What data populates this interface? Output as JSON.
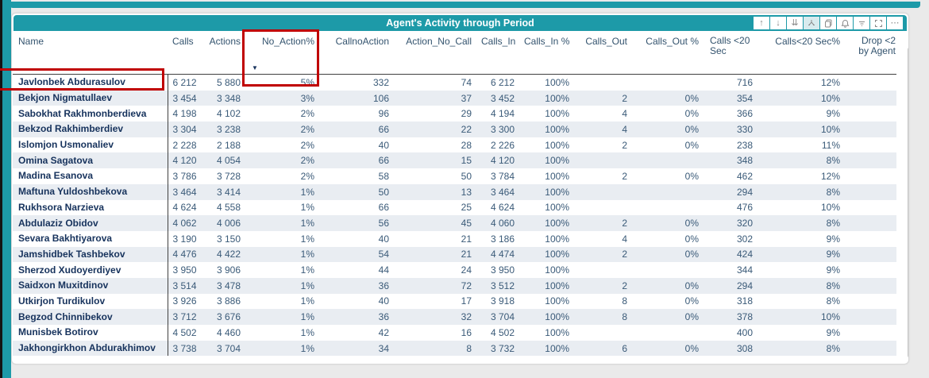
{
  "colors": {
    "accent_teal": "#1d9aa8",
    "annotation_red": "#c00000",
    "row_stripe": "#e9edf2",
    "name_text": "#16325c",
    "value_text": "#3a5a78"
  },
  "title_bar": {
    "title": "Agent's Activity through Period",
    "icons": [
      {
        "name": "drill-up-icon",
        "glyph": "↑"
      },
      {
        "name": "drill-down-icon",
        "glyph": "↓"
      },
      {
        "name": "drill-next-level-icon",
        "glyph": "⇊"
      },
      {
        "name": "expand-all-icon",
        "glyph": ""
      },
      {
        "name": "copy-icon",
        "glyph": ""
      },
      {
        "name": "alert-icon",
        "glyph": ""
      },
      {
        "name": "filter-icon",
        "glyph": ""
      },
      {
        "name": "focus-mode-icon",
        "glyph": ""
      },
      {
        "name": "more-options-icon",
        "glyph": "⋯"
      }
    ]
  },
  "table": {
    "columns": [
      {
        "id": "name",
        "label": "Name",
        "align": "left"
      },
      {
        "id": "calls",
        "label": "Calls",
        "align": "right"
      },
      {
        "id": "actions",
        "label": "Actions",
        "align": "right"
      },
      {
        "id": "no_action_pct",
        "label": "No_Action%",
        "align": "right",
        "sorted": "desc",
        "highlighted": true
      },
      {
        "id": "callnoaction",
        "label": "CallnoAction",
        "align": "right"
      },
      {
        "id": "action_no_call",
        "label": "Action_No_Call",
        "align": "right"
      },
      {
        "id": "calls_in",
        "label": "Calls_In",
        "align": "right"
      },
      {
        "id": "calls_in_pct",
        "label": "Calls_In %",
        "align": "right"
      },
      {
        "id": "calls_out",
        "label": "Calls_Out",
        "align": "right"
      },
      {
        "id": "calls_out_pct",
        "label": "Calls_Out %",
        "align": "right"
      },
      {
        "id": "calls_lt20_sec",
        "label": "Calls <20 Sec",
        "align": "right",
        "wrap": true
      },
      {
        "id": "calls_lt20_sec_pct",
        "label": "Calls<20 Sec%",
        "align": "right"
      },
      {
        "id": "drop_lt2_by_agent",
        "label": "Drop <2 by Agent",
        "align": "right",
        "wrap": true,
        "truncated": true
      }
    ],
    "rows": [
      [
        "Javlonbek Abdurasulov",
        "6 212",
        "5 880",
        "5%",
        "332",
        "74",
        "6 212",
        "100%",
        "",
        "",
        "716",
        "12%",
        ""
      ],
      [
        "Bekjon Nigmatullaev",
        "3 454",
        "3 348",
        "3%",
        "106",
        "37",
        "3 452",
        "100%",
        "2",
        "0%",
        "354",
        "10%",
        ""
      ],
      [
        "Sabokhat Rakhmonberdieva",
        "4 198",
        "4 102",
        "2%",
        "96",
        "29",
        "4 194",
        "100%",
        "4",
        "0%",
        "366",
        "9%",
        ""
      ],
      [
        "Bekzod Rakhimberdiev",
        "3 304",
        "3 238",
        "2%",
        "66",
        "22",
        "3 300",
        "100%",
        "4",
        "0%",
        "330",
        "10%",
        ""
      ],
      [
        "Islomjon Usmonaliev",
        "2 228",
        "2 188",
        "2%",
        "40",
        "28",
        "2 226",
        "100%",
        "2",
        "0%",
        "238",
        "11%",
        ""
      ],
      [
        "Omina Sagatova",
        "4 120",
        "4 054",
        "2%",
        "66",
        "15",
        "4 120",
        "100%",
        "",
        "",
        "348",
        "8%",
        ""
      ],
      [
        "Madina Esanova",
        "3 786",
        "3 728",
        "2%",
        "58",
        "50",
        "3 784",
        "100%",
        "2",
        "0%",
        "462",
        "12%",
        ""
      ],
      [
        "Maftuna Yuldoshbekova",
        "3 464",
        "3 414",
        "1%",
        "50",
        "13",
        "3 464",
        "100%",
        "",
        "",
        "294",
        "8%",
        ""
      ],
      [
        "Rukhsora Narzieva",
        "4 624",
        "4 558",
        "1%",
        "66",
        "25",
        "4 624",
        "100%",
        "",
        "",
        "476",
        "10%",
        ""
      ],
      [
        "Abdulaziz Obidov",
        "4 062",
        "4 006",
        "1%",
        "56",
        "45",
        "4 060",
        "100%",
        "2",
        "0%",
        "320",
        "8%",
        ""
      ],
      [
        "Sevara Bakhtiyarova",
        "3 190",
        "3 150",
        "1%",
        "40",
        "21",
        "3 186",
        "100%",
        "4",
        "0%",
        "302",
        "9%",
        ""
      ],
      [
        "Jamshidbek Tashbekov",
        "4 476",
        "4 422",
        "1%",
        "54",
        "21",
        "4 474",
        "100%",
        "2",
        "0%",
        "424",
        "9%",
        ""
      ],
      [
        "Sherzod Xudoyerdiyev",
        "3 950",
        "3 906",
        "1%",
        "44",
        "24",
        "3 950",
        "100%",
        "",
        "",
        "344",
        "9%",
        ""
      ],
      [
        "Saidxon Muxitdinov",
        "3 514",
        "3 478",
        "1%",
        "36",
        "72",
        "3 512",
        "100%",
        "2",
        "0%",
        "294",
        "8%",
        ""
      ],
      [
        "Utkirjon Turdikulov",
        "3 926",
        "3 886",
        "1%",
        "40",
        "17",
        "3 918",
        "100%",
        "8",
        "0%",
        "318",
        "8%",
        ""
      ],
      [
        "Begzod Chinnibekov",
        "3 712",
        "3 676",
        "1%",
        "36",
        "32",
        "3 704",
        "100%",
        "8",
        "0%",
        "378",
        "10%",
        ""
      ],
      [
        "Munisbek Botirov",
        "4 502",
        "4 460",
        "1%",
        "42",
        "16",
        "4 502",
        "100%",
        "",
        "",
        "400",
        "9%",
        ""
      ],
      [
        "Jakhongirkhon Abdurakhimov",
        "3 738",
        "3 704",
        "1%",
        "34",
        "8",
        "3 732",
        "100%",
        "6",
        "0%",
        "308",
        "8%",
        ""
      ]
    ]
  },
  "sort_indicator": {
    "column": "No_Action%",
    "direction": "descending",
    "glyph": "▼"
  }
}
